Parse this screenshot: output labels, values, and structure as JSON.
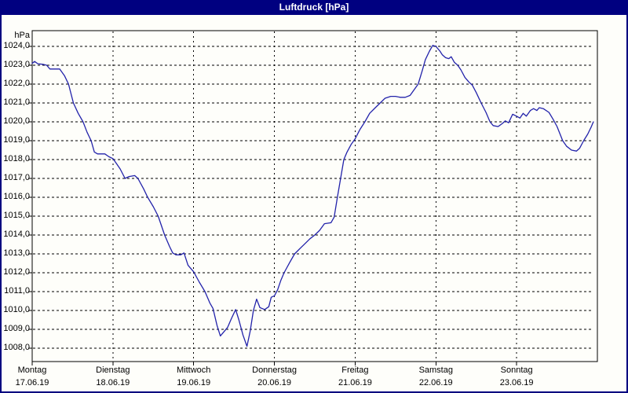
{
  "window": {
    "title": "Luftdruck [hPa]"
  },
  "colors": {
    "titlebar_bg": "#000080",
    "titlebar_text": "#ffffff",
    "frame": "#000080",
    "plot_bg": "#fefefa",
    "grid": "#000000",
    "axis": "#000000",
    "line": "#2222aa",
    "label_text": "#000000"
  },
  "chart_data": {
    "type": "line",
    "title": "Luftdruck [hPa]",
    "ylabel": "hPa",
    "xlabel": "",
    "ylim": [
      1008,
      1024
    ],
    "xlim_days": [
      0,
      7
    ],
    "grid": true,
    "legend": "none",
    "y_axis": {
      "unit_label": "hPa",
      "tick_values": [
        1024,
        1023,
        1022,
        1021,
        1020,
        1019,
        1018,
        1017,
        1016,
        1015,
        1014,
        1013,
        1012,
        1011,
        1010,
        1009,
        1008
      ],
      "tick_labels": [
        "1024,0",
        "1023,0",
        "1022,0",
        "1021,0",
        "1020,0",
        "1019,0",
        "1018,0",
        "1017,0",
        "1016,0",
        "1015,0",
        "1014,0",
        "1013,0",
        "1012,0",
        "1011,0",
        "1010,0",
        "1009,0",
        "1008,0"
      ]
    },
    "x_axis": {
      "ticks": [
        {
          "day": "Montag",
          "date": "17.06.19"
        },
        {
          "day": "Dienstag",
          "date": "18.06.19"
        },
        {
          "day": "Mittwoch",
          "date": "19.06.19"
        },
        {
          "day": "Donnerstag",
          "date": "20.06.19"
        },
        {
          "day": "Freitag",
          "date": "21.06.19"
        },
        {
          "day": "Samstag",
          "date": "22.06.19"
        },
        {
          "day": "Sonntag",
          "date": "23.06.19"
        }
      ]
    },
    "series": [
      {
        "name": "Luftdruck",
        "unit": "hPa",
        "points": [
          [
            0.0,
            1023.1
          ],
          [
            0.03,
            1023.2
          ],
          [
            0.07,
            1023.08
          ],
          [
            0.13,
            1023.05
          ],
          [
            0.18,
            1023.0
          ],
          [
            0.22,
            1022.8
          ],
          [
            0.34,
            1022.8
          ],
          [
            0.4,
            1022.45
          ],
          [
            0.45,
            1022.0
          ],
          [
            0.51,
            1021.0
          ],
          [
            0.57,
            1020.45
          ],
          [
            0.63,
            1020.0
          ],
          [
            0.68,
            1019.45
          ],
          [
            0.73,
            1019.0
          ],
          [
            0.77,
            1018.4
          ],
          [
            0.81,
            1018.3
          ],
          [
            0.9,
            1018.3
          ],
          [
            0.95,
            1018.15
          ],
          [
            1.0,
            1018.05
          ],
          [
            1.05,
            1017.75
          ],
          [
            1.09,
            1017.5
          ],
          [
            1.15,
            1017.0
          ],
          [
            1.2,
            1017.1
          ],
          [
            1.27,
            1017.15
          ],
          [
            1.31,
            1017.0
          ],
          [
            1.38,
            1016.45
          ],
          [
            1.43,
            1016.0
          ],
          [
            1.5,
            1015.5
          ],
          [
            1.56,
            1015.0
          ],
          [
            1.6,
            1014.5
          ],
          [
            1.64,
            1014.0
          ],
          [
            1.7,
            1013.4
          ],
          [
            1.74,
            1013.05
          ],
          [
            1.78,
            1012.95
          ],
          [
            1.84,
            1012.95
          ],
          [
            1.88,
            1013.05
          ],
          [
            1.93,
            1012.4
          ],
          [
            2.0,
            1012.05
          ],
          [
            2.07,
            1011.5
          ],
          [
            2.14,
            1011.0
          ],
          [
            2.2,
            1010.4
          ],
          [
            2.24,
            1010.1
          ],
          [
            2.29,
            1009.2
          ],
          [
            2.33,
            1008.65
          ],
          [
            2.38,
            1008.9
          ],
          [
            2.42,
            1009.1
          ],
          [
            2.47,
            1009.6
          ],
          [
            2.52,
            1010.05
          ],
          [
            2.56,
            1009.5
          ],
          [
            2.61,
            1008.7
          ],
          [
            2.66,
            1008.1
          ],
          [
            2.7,
            1008.9
          ],
          [
            2.74,
            1010.0
          ],
          [
            2.78,
            1010.6
          ],
          [
            2.82,
            1010.15
          ],
          [
            2.88,
            1010.05
          ],
          [
            2.93,
            1010.2
          ],
          [
            2.96,
            1010.7
          ],
          [
            3.0,
            1010.78
          ],
          [
            3.04,
            1011.1
          ],
          [
            3.08,
            1011.6
          ],
          [
            3.12,
            1012.0
          ],
          [
            3.19,
            1012.55
          ],
          [
            3.25,
            1013.0
          ],
          [
            3.32,
            1013.3
          ],
          [
            3.38,
            1013.55
          ],
          [
            3.44,
            1013.8
          ],
          [
            3.5,
            1014.0
          ],
          [
            3.56,
            1014.25
          ],
          [
            3.62,
            1014.6
          ],
          [
            3.7,
            1014.65
          ],
          [
            3.74,
            1014.95
          ],
          [
            3.78,
            1016.0
          ],
          [
            3.82,
            1017.0
          ],
          [
            3.86,
            1018.0
          ],
          [
            3.9,
            1018.4
          ],
          [
            3.95,
            1018.8
          ],
          [
            4.0,
            1019.1
          ],
          [
            4.06,
            1019.6
          ],
          [
            4.12,
            1020.0
          ],
          [
            4.18,
            1020.45
          ],
          [
            4.25,
            1020.75
          ],
          [
            4.31,
            1021.0
          ],
          [
            4.37,
            1021.25
          ],
          [
            4.44,
            1021.35
          ],
          [
            4.5,
            1021.35
          ],
          [
            4.56,
            1021.3
          ],
          [
            4.62,
            1021.3
          ],
          [
            4.68,
            1021.4
          ],
          [
            4.73,
            1021.7
          ],
          [
            4.78,
            1022.0
          ],
          [
            4.83,
            1022.7
          ],
          [
            4.87,
            1023.3
          ],
          [
            4.92,
            1023.75
          ],
          [
            4.96,
            1024.05
          ],
          [
            5.0,
            1024.0
          ],
          [
            5.05,
            1023.75
          ],
          [
            5.08,
            1023.55
          ],
          [
            5.12,
            1023.4
          ],
          [
            5.16,
            1023.35
          ],
          [
            5.19,
            1023.45
          ],
          [
            5.23,
            1023.15
          ],
          [
            5.27,
            1023.0
          ],
          [
            5.31,
            1022.75
          ],
          [
            5.36,
            1022.35
          ],
          [
            5.41,
            1022.1
          ],
          [
            5.45,
            1021.95
          ],
          [
            5.5,
            1021.55
          ],
          [
            5.56,
            1021.0
          ],
          [
            5.62,
            1020.5
          ],
          [
            5.67,
            1020.0
          ],
          [
            5.71,
            1019.8
          ],
          [
            5.77,
            1019.75
          ],
          [
            5.82,
            1019.9
          ],
          [
            5.86,
            1020.05
          ],
          [
            5.9,
            1019.95
          ],
          [
            5.95,
            1020.4
          ],
          [
            6.0,
            1020.3
          ],
          [
            6.04,
            1020.2
          ],
          [
            6.08,
            1020.45
          ],
          [
            6.12,
            1020.3
          ],
          [
            6.17,
            1020.6
          ],
          [
            6.21,
            1020.7
          ],
          [
            6.25,
            1020.6
          ],
          [
            6.28,
            1020.75
          ],
          [
            6.33,
            1020.7
          ],
          [
            6.4,
            1020.5
          ],
          [
            6.45,
            1020.15
          ],
          [
            6.5,
            1019.75
          ],
          [
            6.57,
            1019.0
          ],
          [
            6.62,
            1018.7
          ],
          [
            6.68,
            1018.5
          ],
          [
            6.74,
            1018.45
          ],
          [
            6.78,
            1018.6
          ],
          [
            6.83,
            1019.0
          ],
          [
            6.88,
            1019.35
          ],
          [
            6.92,
            1019.7
          ],
          [
            6.95,
            1020.0
          ]
        ]
      }
    ]
  }
}
